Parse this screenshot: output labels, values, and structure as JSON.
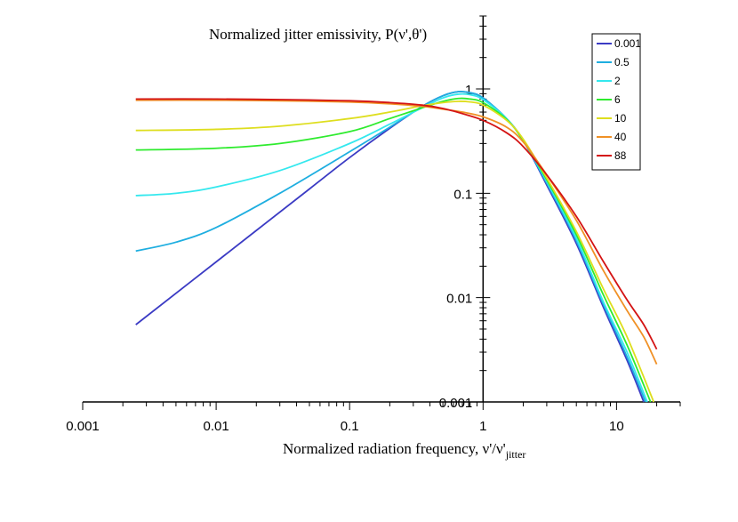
{
  "chart_data": {
    "type": "line",
    "title": "",
    "xlabel": "Normalized radiation frequency, ν'/ν'",
    "xlabel_sub": "jitter",
    "ylabel": "Normalized jitter emissivity, P(ν',θ')",
    "xscale": "log",
    "yscale": "log",
    "xlim": [
      0.001,
      30
    ],
    "ylim": [
      0.001,
      5
    ],
    "x_ticks": [
      0.001,
      0.01,
      0.1,
      1,
      10
    ],
    "x_tick_labels": [
      "0.001",
      "0.01",
      "0.1",
      "1",
      "10"
    ],
    "y_ticks": [
      0.001,
      0.01,
      0.1,
      1
    ],
    "y_tick_labels": [
      "0.001",
      "0.01",
      "0.1",
      "1"
    ],
    "legend_position": "top-right",
    "series": [
      {
        "name": "0.001",
        "color": "#3b3bc4",
        "points": [
          [
            0.0025,
            0.0055
          ],
          [
            0.01,
            0.022
          ],
          [
            0.05,
            0.11
          ],
          [
            0.1,
            0.22
          ],
          [
            0.2,
            0.42
          ],
          [
            0.35,
            0.68
          ],
          [
            0.5,
            0.86
          ],
          [
            0.65,
            0.94
          ],
          [
            0.8,
            0.92
          ],
          [
            1.0,
            0.82
          ],
          [
            1.5,
            0.52
          ],
          [
            2.0,
            0.32
          ],
          [
            3.0,
            0.12
          ],
          [
            5.0,
            0.033
          ],
          [
            8.0,
            0.008
          ],
          [
            12.0,
            0.0025
          ],
          [
            16.0,
            0.001
          ]
        ]
      },
      {
        "name": "0.5",
        "color": "#1eaee0",
        "points": [
          [
            0.0025,
            0.028
          ],
          [
            0.005,
            0.034
          ],
          [
            0.01,
            0.047
          ],
          [
            0.03,
            0.1
          ],
          [
            0.1,
            0.25
          ],
          [
            0.2,
            0.43
          ],
          [
            0.35,
            0.68
          ],
          [
            0.5,
            0.86
          ],
          [
            0.65,
            0.94
          ],
          [
            0.8,
            0.92
          ],
          [
            1.0,
            0.82
          ],
          [
            1.5,
            0.52
          ],
          [
            2.0,
            0.32
          ],
          [
            3.0,
            0.125
          ],
          [
            5.0,
            0.035
          ],
          [
            8.0,
            0.0085
          ],
          [
            12.0,
            0.0027
          ],
          [
            16.5,
            0.001
          ]
        ]
      },
      {
        "name": "2",
        "color": "#34e8ee",
        "points": [
          [
            0.0025,
            0.095
          ],
          [
            0.005,
            0.1
          ],
          [
            0.01,
            0.115
          ],
          [
            0.03,
            0.165
          ],
          [
            0.1,
            0.3
          ],
          [
            0.2,
            0.46
          ],
          [
            0.35,
            0.66
          ],
          [
            0.5,
            0.82
          ],
          [
            0.65,
            0.89
          ],
          [
            0.8,
            0.88
          ],
          [
            1.0,
            0.79
          ],
          [
            1.5,
            0.52
          ],
          [
            2.0,
            0.32
          ],
          [
            3.0,
            0.13
          ],
          [
            5.0,
            0.037
          ],
          [
            8.0,
            0.009
          ],
          [
            12.0,
            0.003
          ],
          [
            17.0,
            0.001
          ]
        ]
      },
      {
        "name": "6",
        "color": "#2eeb2e",
        "points": [
          [
            0.0025,
            0.26
          ],
          [
            0.01,
            0.27
          ],
          [
            0.03,
            0.3
          ],
          [
            0.1,
            0.39
          ],
          [
            0.2,
            0.52
          ],
          [
            0.35,
            0.66
          ],
          [
            0.5,
            0.76
          ],
          [
            0.65,
            0.81
          ],
          [
            0.8,
            0.8
          ],
          [
            1.0,
            0.74
          ],
          [
            1.5,
            0.51
          ],
          [
            2.0,
            0.32
          ],
          [
            3.0,
            0.135
          ],
          [
            5.0,
            0.04
          ],
          [
            8.0,
            0.0105
          ],
          [
            12.0,
            0.0035
          ],
          [
            18.0,
            0.001
          ]
        ]
      },
      {
        "name": "10",
        "color": "#dede1e",
        "points": [
          [
            0.0025,
            0.4
          ],
          [
            0.01,
            0.41
          ],
          [
            0.03,
            0.44
          ],
          [
            0.1,
            0.52
          ],
          [
            0.2,
            0.6
          ],
          [
            0.35,
            0.69
          ],
          [
            0.5,
            0.74
          ],
          [
            0.65,
            0.76
          ],
          [
            0.8,
            0.75
          ],
          [
            1.0,
            0.7
          ],
          [
            1.5,
            0.5
          ],
          [
            2.0,
            0.33
          ],
          [
            3.0,
            0.14
          ],
          [
            5.0,
            0.043
          ],
          [
            8.0,
            0.012
          ],
          [
            12.0,
            0.0042
          ],
          [
            19.0,
            0.001
          ]
        ]
      },
      {
        "name": "40",
        "color": "#f09126",
        "points": [
          [
            0.0025,
            0.78
          ],
          [
            0.01,
            0.78
          ],
          [
            0.03,
            0.77
          ],
          [
            0.1,
            0.75
          ],
          [
            0.2,
            0.72
          ],
          [
            0.35,
            0.68
          ],
          [
            0.5,
            0.64
          ],
          [
            0.7,
            0.6
          ],
          [
            1.0,
            0.54
          ],
          [
            1.5,
            0.43
          ],
          [
            2.0,
            0.31
          ],
          [
            3.0,
            0.15
          ],
          [
            5.0,
            0.055
          ],
          [
            8.0,
            0.018
          ],
          [
            12.0,
            0.0075
          ],
          [
            16.0,
            0.0042
          ],
          [
            20.0,
            0.0023
          ]
        ]
      },
      {
        "name": "88",
        "color": "#d41414",
        "points": [
          [
            0.0025,
            0.8
          ],
          [
            0.01,
            0.8
          ],
          [
            0.03,
            0.79
          ],
          [
            0.1,
            0.77
          ],
          [
            0.2,
            0.74
          ],
          [
            0.35,
            0.7
          ],
          [
            0.5,
            0.65
          ],
          [
            0.7,
            0.58
          ],
          [
            1.0,
            0.5
          ],
          [
            1.5,
            0.38
          ],
          [
            2.0,
            0.28
          ],
          [
            3.0,
            0.15
          ],
          [
            5.0,
            0.06
          ],
          [
            8.0,
            0.022
          ],
          [
            12.0,
            0.0095
          ],
          [
            16.0,
            0.0055
          ],
          [
            20.0,
            0.0032
          ]
        ]
      }
    ]
  }
}
